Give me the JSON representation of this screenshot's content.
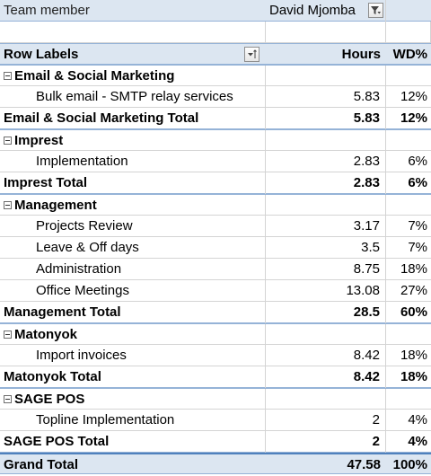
{
  "filter": {
    "label": "Team member",
    "value": "David Mjomba"
  },
  "header": {
    "row_labels": "Row Labels",
    "hours": "Hours",
    "wd": "WD%"
  },
  "groups": [
    {
      "name": "Email & Social Marketing",
      "items": [
        {
          "label": "Bulk email - SMTP relay services",
          "hours": "5.83",
          "wd": "12%"
        }
      ],
      "total_label": "Email & Social Marketing Total",
      "total_hours": "5.83",
      "total_wd": "12%"
    },
    {
      "name": "Imprest",
      "items": [
        {
          "label": "Implementation",
          "hours": "2.83",
          "wd": "6%"
        }
      ],
      "total_label": "Imprest Total",
      "total_hours": "2.83",
      "total_wd": "6%"
    },
    {
      "name": "Management",
      "items": [
        {
          "label": "Projects Review",
          "hours": "3.17",
          "wd": "7%"
        },
        {
          "label": "Leave & Off days",
          "hours": "3.5",
          "wd": "7%"
        },
        {
          "label": "Administration",
          "hours": "8.75",
          "wd": "18%"
        },
        {
          "label": "Office Meetings",
          "hours": "13.08",
          "wd": "27%"
        }
      ],
      "total_label": "Management Total",
      "total_hours": "28.5",
      "total_wd": "60%"
    },
    {
      "name": "Matonyok",
      "items": [
        {
          "label": "Import invoices",
          "hours": "8.42",
          "wd": "18%"
        }
      ],
      "total_label": "Matonyok Total",
      "total_hours": "8.42",
      "total_wd": "18%"
    },
    {
      "name": "SAGE POS",
      "items": [
        {
          "label": "Topline Implementation",
          "hours": "2",
          "wd": "4%"
        }
      ],
      "total_label": "SAGE POS Total",
      "total_hours": "2",
      "total_wd": "4%"
    }
  ],
  "grand_total": {
    "label": "Grand Total",
    "hours": "47.58",
    "wd": "100%"
  },
  "icons": {
    "collapse": "collapse-minus-icon",
    "filter": "filter-funnel-icon",
    "sort": "sort-filter-icon"
  },
  "colors": {
    "header_fill": "#dce6f1",
    "border_blue": "#95b3d7",
    "grand_border": "#4f81bd"
  }
}
